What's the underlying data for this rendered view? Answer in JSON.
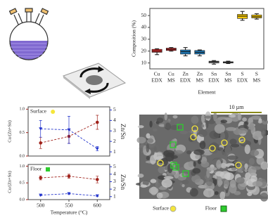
{
  "chart_data": [
    {
      "type": "box",
      "ylabel": "Composition (%)",
      "xlabel": "Element",
      "categories": [
        [
          "Cu",
          "EDX"
        ],
        [
          "Cu",
          "MS"
        ],
        [
          "Zn",
          "EDX"
        ],
        [
          "Zn",
          "MS"
        ],
        [
          "Sn",
          "EDX"
        ],
        [
          "Sn",
          "MS"
        ],
        [
          "S",
          "EDX"
        ],
        [
          "S",
          "MS"
        ]
      ],
      "colors": [
        "#d62728",
        "#d62728",
        "#1f77b4",
        "#1f77b4",
        "#7f7f7f",
        "#7f7f7f",
        "#f2c500",
        "#f2c500"
      ],
      "boxes": [
        {
          "min": 17,
          "q1": 19,
          "median": 20,
          "q3": 21.5,
          "max": 22
        },
        {
          "min": 20,
          "q1": 20.5,
          "median": 21.5,
          "q3": 22.5,
          "max": 23
        },
        {
          "min": 16,
          "q1": 17.5,
          "median": 19.5,
          "q3": 21,
          "max": 23
        },
        {
          "min": 16,
          "q1": 17.5,
          "median": 19,
          "q3": 20.5,
          "max": 21
        },
        {
          "min": 9,
          "q1": 10,
          "median": 11,
          "q3": 11.5,
          "max": 12
        },
        {
          "min": 9.5,
          "q1": 10,
          "median": 10.5,
          "q3": 11,
          "max": 11.5
        },
        {
          "min": 46,
          "q1": 47.5,
          "median": 49.5,
          "q3": 51,
          "max": 53.5
        },
        {
          "min": 47,
          "q1": 48,
          "median": 49,
          "q3": 50.5,
          "max": 51.5
        }
      ],
      "ylim": [
        5,
        56
      ],
      "yticks": [
        10,
        20,
        30,
        40,
        50
      ]
    },
    {
      "type": "line",
      "annotation": "Surface",
      "annotation_marker": "#f5e63a",
      "ylabel": "Cu/(Zn+Sn)",
      "y2label": "Zn/Sn",
      "x": [
        500,
        550,
        600
      ],
      "xlim": [
        478,
        622
      ],
      "ylim": [
        0,
        1.05
      ],
      "yticks": [
        {
          "value": 0,
          "label": "0.0"
        },
        {
          "value": 0.5,
          "label": "0.5"
        },
        {
          "value": 1,
          "label": "1.0"
        }
      ],
      "y2lim": [
        0.6,
        5.3
      ],
      "y2ticks": [
        1,
        2,
        3,
        4,
        5
      ],
      "series": [
        {
          "color": "#a0221b",
          "marker": "circle",
          "values": [
            0.28,
            0.42,
            0.72
          ],
          "errors": [
            0.12,
            0.15,
            0.15
          ]
        },
        {
          "color": "#2233cc",
          "marker": "triangle",
          "axis": "y2",
          "values": [
            3.2,
            3.1,
            1.3
          ],
          "errors": [
            0.8,
            1.3,
            0.2
          ]
        }
      ]
    },
    {
      "type": "line",
      "annotation": "Floor",
      "annotation_marker": "#2ecc2e",
      "ylabel": "Cu/(Zn+Sn)",
      "y2label": "Zn/Sn",
      "xlabel": "Temperature (°C)",
      "x": [
        500,
        550,
        600
      ],
      "xlim": [
        478,
        622
      ],
      "xticks": [
        500,
        550,
        600
      ],
      "ylim": [
        0,
        1.05
      ],
      "yticks": [
        {
          "value": 0,
          "label": "0.0"
        },
        {
          "value": 0.5,
          "label": "0.5"
        },
        {
          "value": 1,
          "label": "1.0"
        }
      ],
      "y2lim": [
        0.6,
        5.3
      ],
      "y2ticks": [
        1,
        2,
        3,
        4,
        5
      ],
      "series": [
        {
          "color": "#a0221b",
          "marker": "circle",
          "values": [
            0.65,
            0.7,
            0.6
          ],
          "errors": [
            0.06,
            0.06,
            0.1
          ]
        },
        {
          "color": "#2233cc",
          "marker": "triangle",
          "axis": "y2",
          "values": [
            1.2,
            1.4,
            1.1
          ],
          "errors": [
            0.1,
            0.1,
            0.1
          ]
        }
      ]
    }
  ],
  "image": {
    "scale_bar": "10 µm",
    "legend": [
      "Surface",
      "Floor"
    ]
  }
}
